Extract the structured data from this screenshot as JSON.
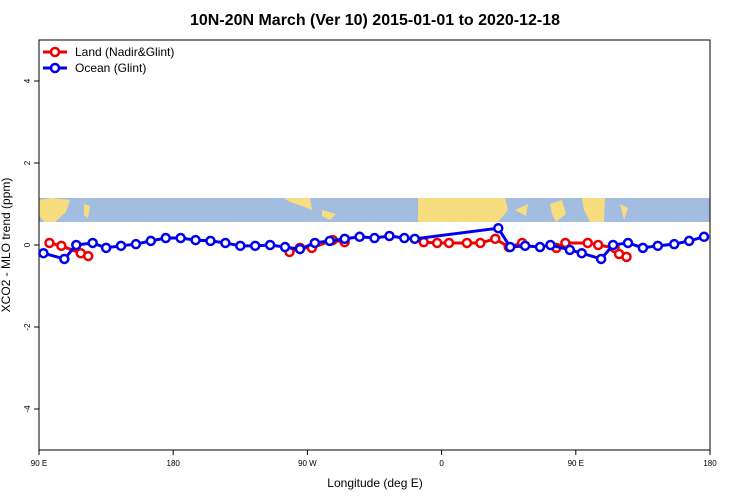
{
  "chart_data": {
    "type": "line",
    "title": "10N-20N March (Ver 10)   2015-01-01 to 2020-12-18",
    "x_label": "Longitude (deg E)",
    "y_label": "XCO2 - MLO trend (ppm)",
    "xlim": [
      90,
      540
    ],
    "xticks": [
      {
        "value": 90,
        "label": "90 E"
      },
      {
        "value": 180,
        "label": "180"
      },
      {
        "value": 270,
        "label": "90 W"
      },
      {
        "value": 360,
        "label": "0"
      },
      {
        "value": 450,
        "label": "90 E"
      },
      {
        "value": 540,
        "label": "180"
      }
    ],
    "ylim": [
      -5,
      5
    ],
    "yticks": [
      -4,
      -2,
      0,
      2,
      4
    ],
    "legend": "top-left",
    "series": [
      {
        "name": "Land (Nadir&Glint)",
        "color": "#ee0000",
        "x": [
          97,
          105,
          118,
          123,
          200,
          258,
          265,
          273,
          287,
          295,
          330,
          348,
          357,
          365,
          377,
          386,
          396,
          405,
          414,
          425,
          437,
          443,
          458,
          465,
          476,
          479,
          484
        ],
        "values": [
          0.05,
          -0.02,
          -0.2,
          -0.27,
          null,
          -0.17,
          -0.07,
          -0.07,
          0.12,
          0.07,
          null,
          0.07,
          0.05,
          0.05,
          0.05,
          0.05,
          0.15,
          -0.05,
          0.05,
          null,
          -0.07,
          0.05,
          0.05,
          0,
          -0.07,
          -0.22,
          -0.29
        ]
      },
      {
        "name": "Ocean (Glint)",
        "color": "#0000ee",
        "x": [
          93,
          107,
          115,
          126,
          135,
          145,
          155,
          165,
          175,
          185,
          195,
          205,
          215,
          225,
          235,
          245,
          255,
          265,
          275,
          285,
          295,
          305,
          315,
          325,
          335,
          342,
          398,
          406,
          416,
          426,
          433,
          446,
          454,
          467,
          475,
          485,
          495,
          505,
          516,
          526,
          536
        ],
        "values": [
          -0.2,
          -0.34,
          0,
          0.05,
          -0.07,
          -0.02,
          0.02,
          0.1,
          0.17,
          0.17,
          0.12,
          0.1,
          0.05,
          -0.02,
          -0.02,
          0,
          -0.05,
          -0.1,
          0.05,
          0.1,
          0.15,
          0.2,
          0.17,
          0.22,
          0.17,
          0.15,
          0.41,
          -0.05,
          -0.02,
          -0.05,
          0,
          -0.12,
          -0.2,
          -0.34,
          0,
          0.05,
          -0.07,
          -0.02,
          0.02,
          0.1,
          0.2
        ]
      }
    ]
  }
}
